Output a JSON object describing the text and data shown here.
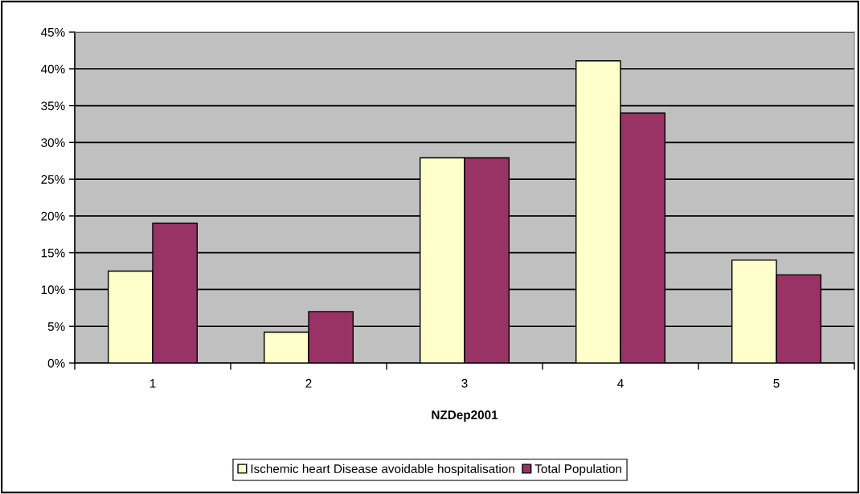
{
  "chart_data": {
    "type": "bar",
    "xlabel": "NZDep2001",
    "categories": [
      "1",
      "2",
      "3",
      "4",
      "5"
    ],
    "series": [
      {
        "name": "Ischemic heart Disease avoidable hospitalisation",
        "color": "#ffffcc",
        "values": [
          12.5,
          4.2,
          27.9,
          41.1,
          14.0
        ]
      },
      {
        "name": "Total Population",
        "color": "#993366",
        "values": [
          19.0,
          7.0,
          27.9,
          34.0,
          12.0
        ]
      }
    ],
    "ylim": [
      0,
      45
    ],
    "yticks": [
      {
        "value": 0,
        "label": "0%"
      },
      {
        "value": 5,
        "label": "5%"
      },
      {
        "value": 10,
        "label": "10%"
      },
      {
        "value": 15,
        "label": "15%"
      },
      {
        "value": 20,
        "label": "20%"
      },
      {
        "value": 25,
        "label": "25%"
      },
      {
        "value": 30,
        "label": "30%"
      },
      {
        "value": 35,
        "label": "35%"
      },
      {
        "value": 40,
        "label": "40%"
      },
      {
        "value": 45,
        "label": "45%"
      }
    ],
    "grid": "y",
    "legend": "bottom"
  }
}
